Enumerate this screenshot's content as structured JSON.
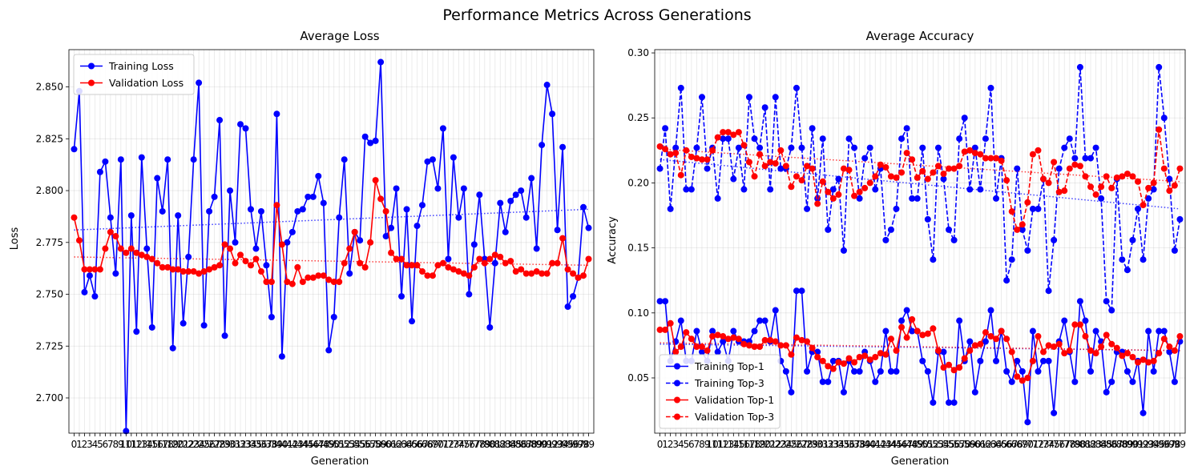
{
  "figure": {
    "suptitle": "Performance Metrics Across Generations"
  },
  "chart_data": [
    {
      "type": "line",
      "title": "Average Loss",
      "xlabel": "Generation",
      "ylabel": "Loss",
      "x_tick_label_count": 100,
      "xlim": [
        -1,
        100
      ],
      "ylim": [
        2.683,
        2.868
      ],
      "yticks": [
        2.7,
        2.725,
        2.75,
        2.775,
        2.8,
        2.825,
        2.85
      ],
      "ytick_labels": [
        "2.700",
        "2.725",
        "2.750",
        "2.775",
        "2.800",
        "2.825",
        "2.850"
      ],
      "grid": true,
      "legend": {
        "position": "top-left"
      },
      "series": [
        {
          "name": "Training Loss",
          "color": "#0000ff",
          "line": "solid",
          "values": [
            2.82,
            2.848,
            2.751,
            2.759,
            2.749,
            2.809,
            2.814,
            2.787,
            2.76,
            2.815,
            2.684,
            2.788,
            2.732,
            2.816,
            2.772,
            2.734,
            2.806,
            2.79,
            2.815,
            2.724,
            2.788,
            2.736,
            2.768,
            2.815,
            2.852,
            2.735,
            2.79,
            2.797,
            2.834,
            2.73,
            2.8,
            2.775,
            2.832,
            2.83,
            2.791,
            2.772,
            2.79,
            2.764,
            2.739,
            2.837,
            2.72,
            2.775,
            2.78,
            2.79,
            2.791,
            2.797,
            2.797,
            2.807,
            2.794,
            2.723,
            2.739,
            2.787,
            2.815,
            2.76,
            2.78,
            2.776,
            2.826,
            2.823,
            2.824,
            2.862,
            2.778,
            2.782,
            2.801,
            2.749,
            2.791,
            2.737,
            2.783,
            2.793,
            2.814,
            2.815,
            2.801,
            2.83,
            2.767,
            2.816,
            2.787,
            2.801,
            2.75,
            2.774,
            2.798,
            2.767,
            2.734,
            2.765,
            2.794,
            2.78,
            2.795,
            2.798,
            2.8,
            2.787,
            2.806,
            2.772,
            2.822,
            2.851,
            2.837,
            2.781,
            2.821,
            2.744,
            2.749,
            2.758,
            2.792,
            2.782
          ]
        },
        {
          "name": "Validation Loss",
          "color": "#ff0000",
          "line": "solid",
          "values": [
            2.787,
            2.776,
            2.762,
            2.762,
            2.762,
            2.762,
            2.772,
            2.78,
            2.778,
            2.772,
            2.77,
            2.772,
            2.77,
            2.769,
            2.768,
            2.767,
            2.765,
            2.763,
            2.763,
            2.762,
            2.762,
            2.761,
            2.761,
            2.761,
            2.76,
            2.761,
            2.762,
            2.763,
            2.764,
            2.774,
            2.772,
            2.765,
            2.769,
            2.766,
            2.764,
            2.767,
            2.761,
            2.756,
            2.756,
            2.793,
            2.774,
            2.756,
            2.755,
            2.763,
            2.756,
            2.758,
            2.758,
            2.759,
            2.759,
            2.757,
            2.756,
            2.756,
            2.765,
            2.772,
            2.78,
            2.765,
            2.763,
            2.775,
            2.805,
            2.796,
            2.79,
            2.77,
            2.767,
            2.767,
            2.764,
            2.764,
            2.764,
            2.761,
            2.759,
            2.759,
            2.764,
            2.765,
            2.763,
            2.762,
            2.761,
            2.76,
            2.759,
            2.763,
            2.767,
            2.765,
            2.767,
            2.769,
            2.768,
            2.765,
            2.766,
            2.761,
            2.762,
            2.76,
            2.76,
            2.761,
            2.76,
            2.76,
            2.765,
            2.765,
            2.777,
            2.762,
            2.76,
            2.758,
            2.759,
            2.767
          ]
        }
      ],
      "trendlines": [
        {
          "series": "Training Loss",
          "color": "#0000ff",
          "from": 2.781,
          "to": 2.791
        },
        {
          "series": "Validation Loss",
          "color": "#ff0000",
          "from": 2.768,
          "to": 2.764
        }
      ]
    },
    {
      "type": "line",
      "title": "Average Accuracy",
      "xlabel": "Generation",
      "ylabel": "Accuracy",
      "x_tick_label_count": 100,
      "xlim": [
        -1,
        100
      ],
      "ylim": [
        0.0075,
        0.3025
      ],
      "yticks": [
        0.05,
        0.1,
        0.15,
        0.2,
        0.25,
        0.3
      ],
      "ytick_labels": [
        "0.05",
        "0.10",
        "0.15",
        "0.20",
        "0.25",
        "0.30"
      ],
      "grid": true,
      "legend": {
        "position": "bottom-left"
      },
      "series": [
        {
          "name": "Training Top-1",
          "color": "#0000ff",
          "line": "solid",
          "values": [
            0.109,
            0.109,
            0.063,
            0.078,
            0.094,
            0.063,
            0.063,
            0.086,
            0.07,
            0.063,
            0.086,
            0.07,
            0.078,
            0.063,
            0.086,
            0.078,
            0.078,
            0.078,
            0.086,
            0.094,
            0.094,
            0.078,
            0.102,
            0.063,
            0.055,
            0.039,
            0.117,
            0.117,
            0.055,
            0.07,
            0.07,
            0.047,
            0.047,
            0.063,
            0.063,
            0.039,
            0.063,
            0.055,
            0.055,
            0.07,
            0.063,
            0.047,
            0.055,
            0.086,
            0.055,
            0.055,
            0.094,
            0.102,
            0.086,
            0.086,
            0.063,
            0.055,
            0.031,
            0.07,
            0.07,
            0.031,
            0.031,
            0.094,
            0.063,
            0.078,
            0.039,
            0.063,
            0.078,
            0.102,
            0.063,
            0.086,
            0.055,
            0.047,
            0.063,
            0.055,
            0.016,
            0.086,
            0.055,
            0.063,
            0.063,
            0.023,
            0.078,
            0.094,
            0.07,
            0.047,
            0.109,
            0.094,
            0.055,
            0.086,
            0.078,
            0.039,
            0.047,
            0.07,
            0.07,
            0.055,
            0.047,
            0.063,
            0.023,
            0.086,
            0.055,
            0.086,
            0.086,
            0.07,
            0.047,
            0.078
          ]
        },
        {
          "name": "Training Top-3",
          "color": "#0000ff",
          "line": "dashed",
          "values": [
            0.211,
            0.242,
            0.18,
            0.227,
            0.273,
            0.195,
            0.195,
            0.227,
            0.266,
            0.211,
            0.227,
            0.188,
            0.234,
            0.234,
            0.203,
            0.227,
            0.195,
            0.266,
            0.234,
            0.227,
            0.258,
            0.195,
            0.266,
            0.211,
            0.211,
            0.227,
            0.273,
            0.227,
            0.18,
            0.242,
            0.188,
            0.234,
            0.164,
            0.195,
            0.203,
            0.148,
            0.234,
            0.227,
            0.188,
            0.219,
            0.227,
            0.195,
            0.211,
            0.156,
            0.164,
            0.18,
            0.234,
            0.242,
            0.188,
            0.188,
            0.227,
            0.172,
            0.141,
            0.227,
            0.203,
            0.164,
            0.156,
            0.234,
            0.25,
            0.195,
            0.227,
            0.195,
            0.234,
            0.273,
            0.188,
            0.219,
            0.125,
            0.141,
            0.211,
            0.164,
            0.148,
            0.18,
            0.18,
            0.203,
            0.117,
            0.156,
            0.211,
            0.227,
            0.234,
            0.219,
            0.289,
            0.219,
            0.219,
            0.227,
            0.188,
            0.109,
            0.102,
            0.203,
            0.141,
            0.133,
            0.156,
            0.18,
            0.141,
            0.188,
            0.195,
            0.289,
            0.25,
            0.203,
            0.148,
            0.172
          ]
        },
        {
          "name": "Validation Top-1",
          "color": "#ff0000",
          "line": "solid",
          "values": [
            0.087,
            0.087,
            0.092,
            0.07,
            0.074,
            0.085,
            0.08,
            0.074,
            0.074,
            0.071,
            0.082,
            0.083,
            0.082,
            0.08,
            0.081,
            0.08,
            0.076,
            0.075,
            0.074,
            0.074,
            0.079,
            0.079,
            0.078,
            0.075,
            0.075,
            0.068,
            0.081,
            0.079,
            0.078,
            0.073,
            0.066,
            0.063,
            0.059,
            0.057,
            0.062,
            0.061,
            0.065,
            0.062,
            0.066,
            0.067,
            0.064,
            0.066,
            0.069,
            0.068,
            0.08,
            0.071,
            0.089,
            0.081,
            0.095,
            0.086,
            0.083,
            0.084,
            0.088,
            0.071,
            0.058,
            0.06,
            0.056,
            0.058,
            0.065,
            0.071,
            0.075,
            0.076,
            0.085,
            0.082,
            0.08,
            0.086,
            0.08,
            0.07,
            0.051,
            0.048,
            0.05,
            0.063,
            0.082,
            0.07,
            0.075,
            0.074,
            0.076,
            0.069,
            0.071,
            0.091,
            0.091,
            0.082,
            0.071,
            0.069,
            0.074,
            0.083,
            0.076,
            0.073,
            0.067,
            0.069,
            0.066,
            0.062,
            0.064,
            0.062,
            0.063,
            0.069,
            0.08,
            0.074,
            0.071,
            0.082
          ]
        },
        {
          "name": "Validation Top-3",
          "color": "#ff0000",
          "line": "dashed",
          "values": [
            0.228,
            0.226,
            0.222,
            0.223,
            0.206,
            0.225,
            0.22,
            0.219,
            0.218,
            0.218,
            0.225,
            0.235,
            0.239,
            0.239,
            0.237,
            0.239,
            0.229,
            0.216,
            0.205,
            0.222,
            0.213,
            0.216,
            0.215,
            0.225,
            0.213,
            0.197,
            0.205,
            0.202,
            0.213,
            0.211,
            0.184,
            0.201,
            0.193,
            0.188,
            0.191,
            0.211,
            0.21,
            0.19,
            0.193,
            0.196,
            0.2,
            0.205,
            0.214,
            0.212,
            0.205,
            0.204,
            0.208,
            0.223,
            0.218,
            0.204,
            0.209,
            0.203,
            0.208,
            0.213,
            0.207,
            0.211,
            0.211,
            0.213,
            0.224,
            0.225,
            0.223,
            0.222,
            0.219,
            0.219,
            0.219,
            0.217,
            0.202,
            0.178,
            0.164,
            0.168,
            0.185,
            0.222,
            0.225,
            0.203,
            0.2,
            0.216,
            0.193,
            0.194,
            0.211,
            0.214,
            0.213,
            0.205,
            0.197,
            0.191,
            0.197,
            0.205,
            0.196,
            0.204,
            0.205,
            0.207,
            0.205,
            0.201,
            0.183,
            0.196,
            0.2,
            0.241,
            0.211,
            0.194,
            0.198,
            0.211
          ]
        }
      ],
      "trendlines": [
        {
          "series": "Training Top-1",
          "color": "#0000ff",
          "from": 0.076,
          "to": 0.071
        },
        {
          "series": "Training Top-3",
          "color": "#0000ff",
          "from": 0.218,
          "to": 0.18
        },
        {
          "series": "Validation Top-1",
          "color": "#ff0000",
          "from": 0.077,
          "to": 0.071
        },
        {
          "series": "Validation Top-3",
          "color": "#ff0000",
          "from": 0.226,
          "to": 0.201
        }
      ]
    }
  ]
}
